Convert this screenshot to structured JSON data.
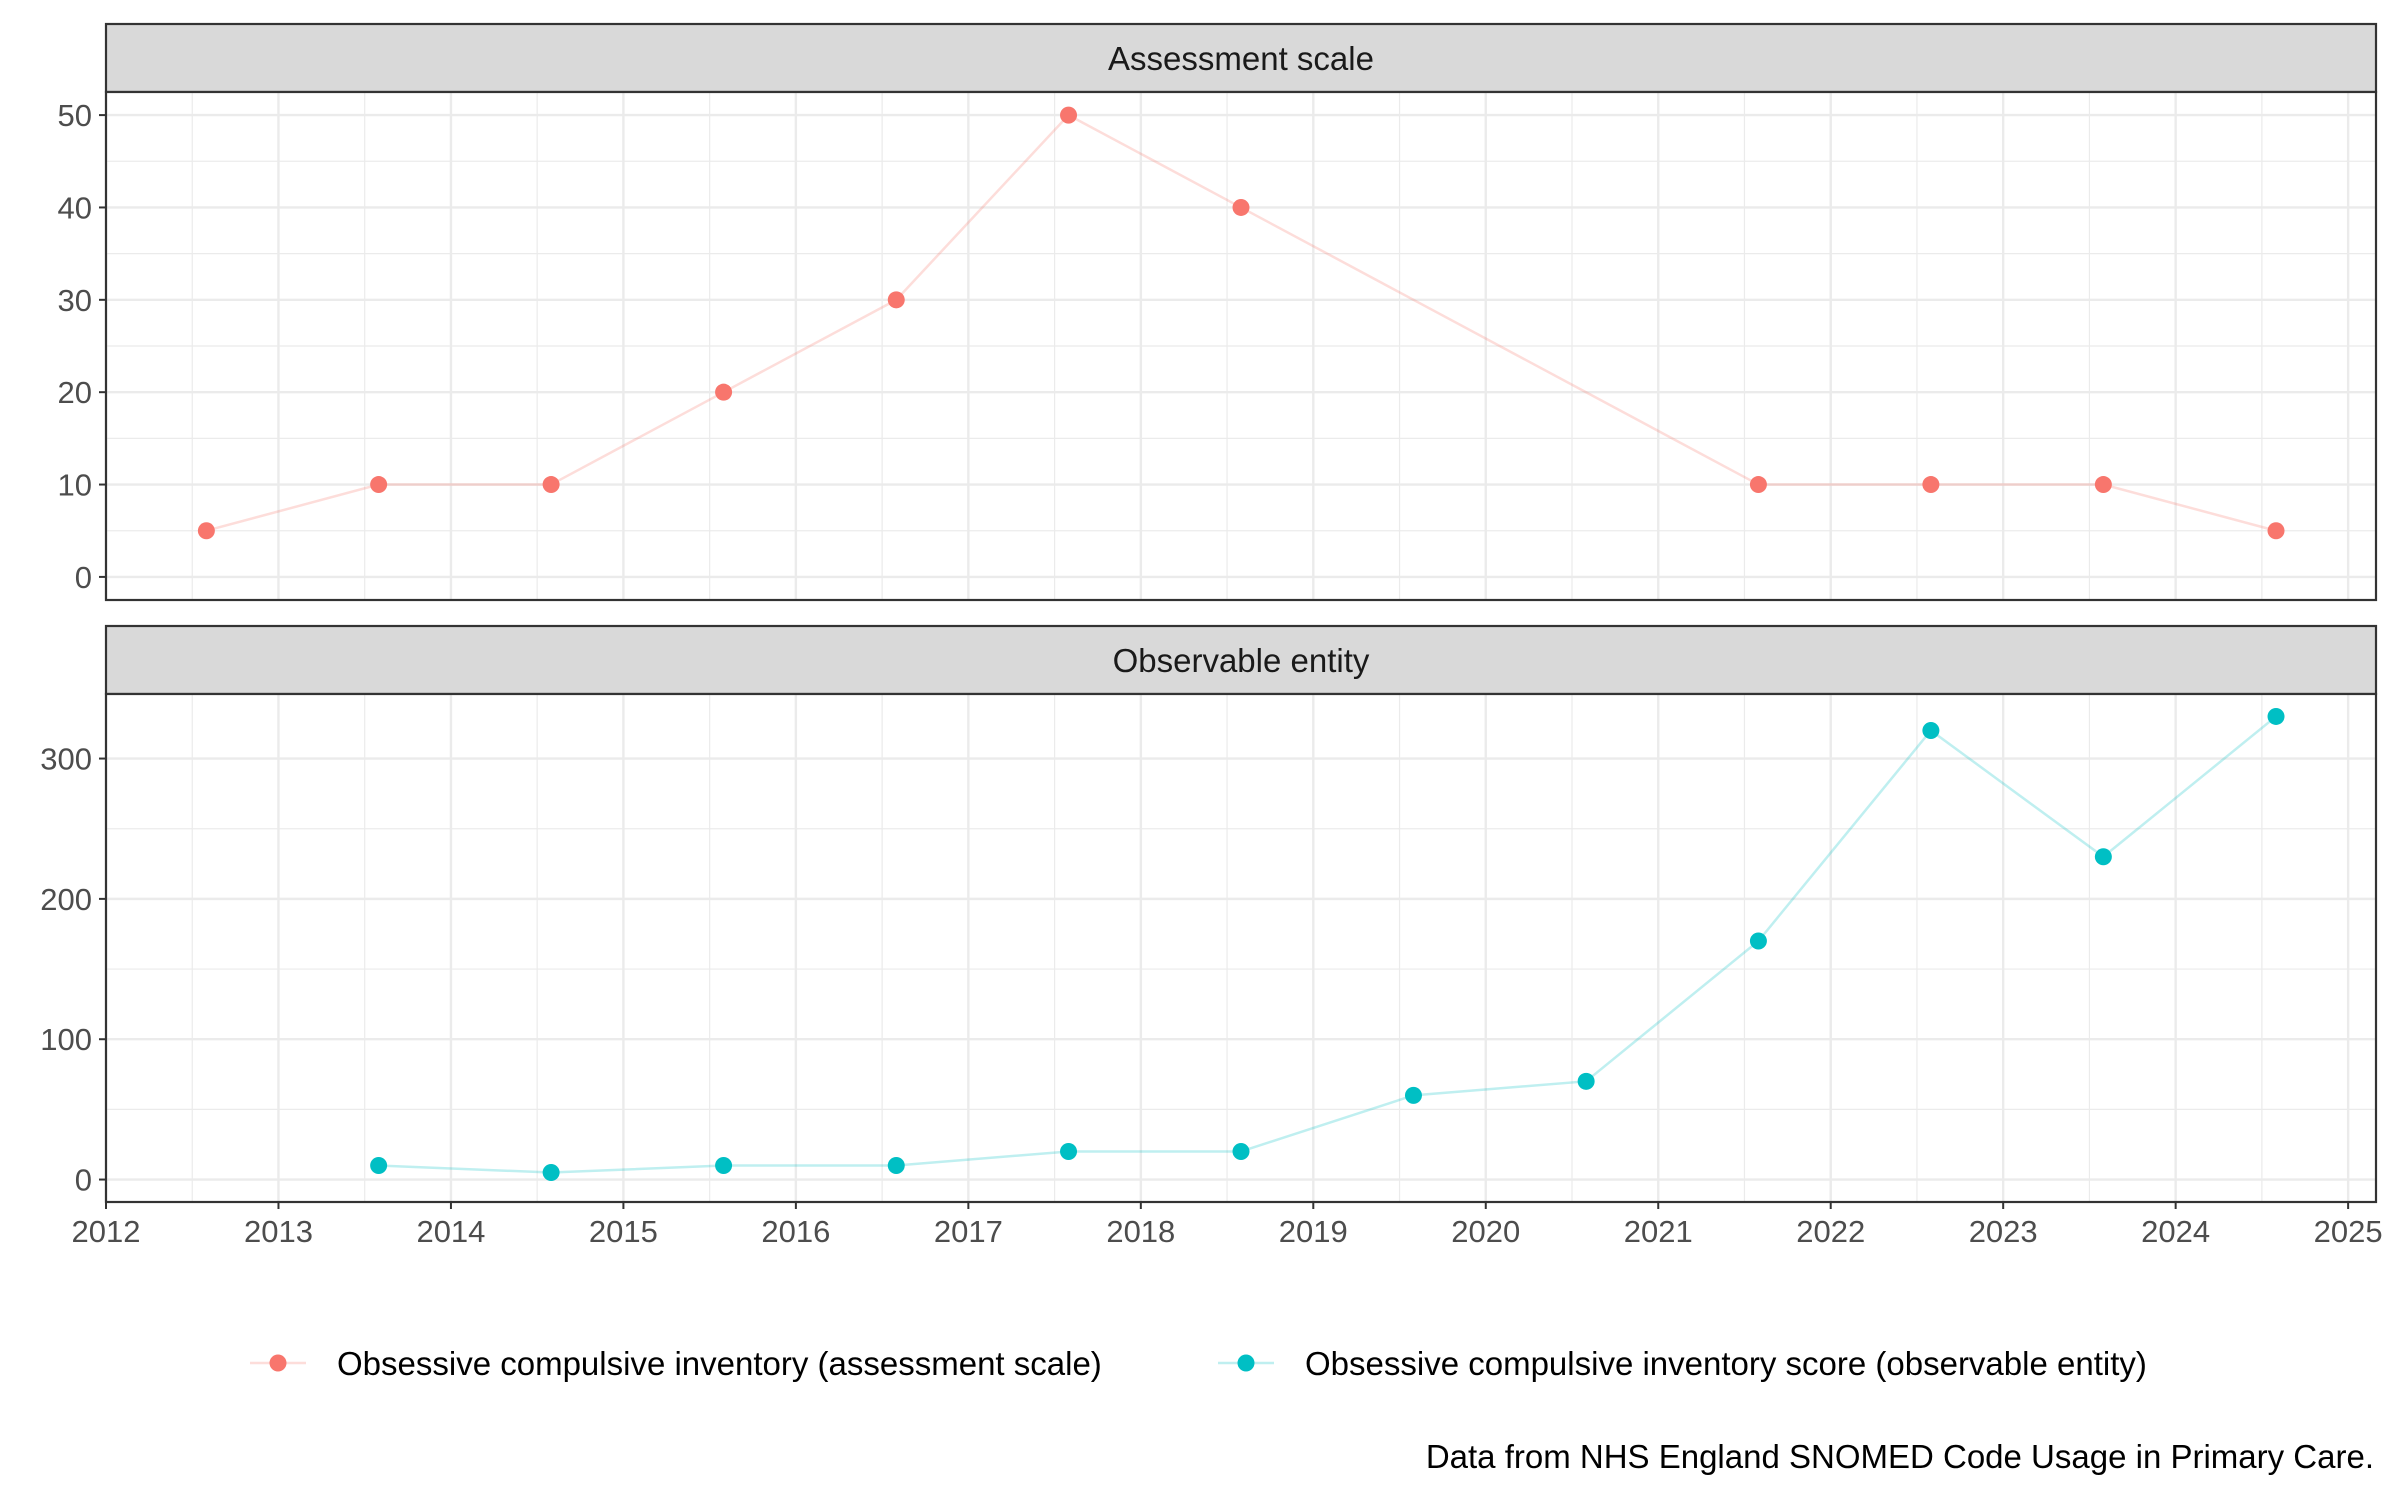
{
  "chart_data": {
    "type": "line",
    "facets": [
      {
        "strip_label": "Assessment scale",
        "series": [
          {
            "name": "Obsessive compulsive inventory (assessment scale)",
            "color": "#F8766D",
            "points": [
              {
                "x": "2012-08-01",
                "y": 5
              },
              {
                "x": "2013-08-01",
                "y": 10
              },
              {
                "x": "2014-08-01",
                "y": 10
              },
              {
                "x": "2015-08-01",
                "y": 20
              },
              {
                "x": "2016-08-01",
                "y": 30
              },
              {
                "x": "2017-08-01",
                "y": 50
              },
              {
                "x": "2018-08-01",
                "y": 40
              },
              {
                "x": "2021-08-01",
                "y": 10
              },
              {
                "x": "2022-08-01",
                "y": 10
              },
              {
                "x": "2023-08-01",
                "y": 10
              },
              {
                "x": "2024-08-01",
                "y": 5
              }
            ]
          }
        ],
        "ylim": [
          -2.5,
          52.5
        ],
        "y_ticks": [
          0,
          10,
          20,
          30,
          40,
          50
        ],
        "y_minor": [
          5,
          15,
          25,
          35,
          45
        ]
      },
      {
        "strip_label": "Observable entity",
        "series": [
          {
            "name": "Obsessive compulsive inventory score (observable entity)",
            "color": "#00BFC4",
            "points": [
              {
                "x": "2013-08-01",
                "y": 10
              },
              {
                "x": "2014-08-01",
                "y": 5
              },
              {
                "x": "2015-08-01",
                "y": 10
              },
              {
                "x": "2016-08-01",
                "y": 10
              },
              {
                "x": "2017-08-01",
                "y": 20
              },
              {
                "x": "2018-08-01",
                "y": 20
              },
              {
                "x": "2019-08-01",
                "y": 60
              },
              {
                "x": "2020-08-01",
                "y": 70
              },
              {
                "x": "2021-08-01",
                "y": 170
              },
              {
                "x": "2022-08-01",
                "y": 320
              },
              {
                "x": "2023-08-01",
                "y": 230
              },
              {
                "x": "2024-08-01",
                "y": 330
              }
            ]
          }
        ],
        "ylim": [
          -16,
          346
        ],
        "y_ticks": [
          0,
          100,
          200,
          300
        ],
        "y_minor": [
          50,
          150,
          250
        ]
      }
    ],
    "x_range": [
      "2012-01-01",
      "2025-03-01"
    ],
    "x_ticks": [
      "2012",
      "2013",
      "2014",
      "2015",
      "2016",
      "2017",
      "2018",
      "2019",
      "2020",
      "2021",
      "2022",
      "2023",
      "2024",
      "2025"
    ],
    "grid": true,
    "legend": {
      "position": "bottom",
      "items": [
        {
          "label": "Obsessive compulsive inventory (assessment scale)",
          "color": "#F8766D"
        },
        {
          "label": "Obsessive compulsive inventory score (observable entity)",
          "color": "#00BFC4"
        }
      ]
    },
    "caption": "Data from NHS England SNOMED Code Usage in Primary Care."
  }
}
